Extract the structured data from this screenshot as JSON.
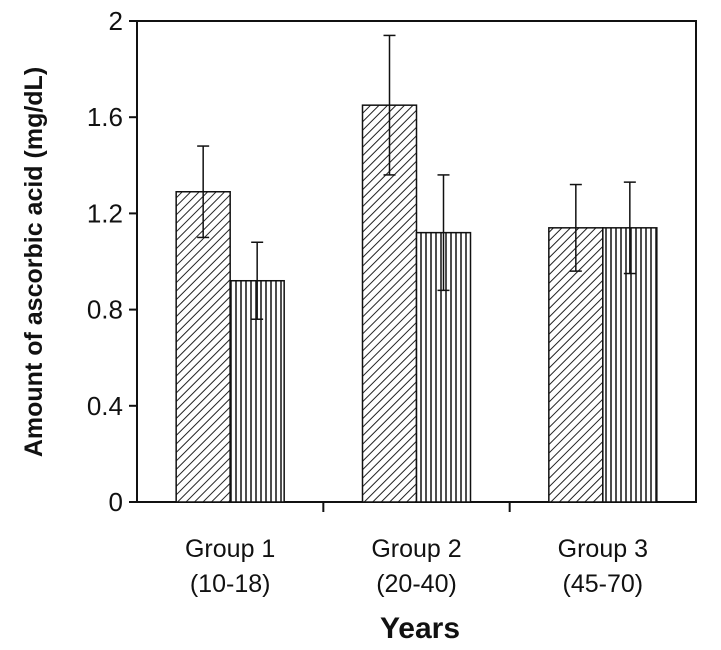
{
  "chart_data": {
    "type": "bar",
    "xlabel": "Years",
    "ylabel": "Amount of ascorbic acid (mg/dL)",
    "ylim": [
      0,
      2
    ],
    "yticks": [
      "0",
      "0.4",
      "0.8",
      "1.2",
      "1.6",
      "2"
    ],
    "categories": [
      {
        "line1": "Group 1",
        "line2": "(10-18)"
      },
      {
        "line1": "Group 2",
        "line2": "(20-40)"
      },
      {
        "line1": "Group 3",
        "line2": "(45-70)"
      }
    ],
    "series": [
      {
        "pattern": "diagonal-hatch",
        "values": [
          1.29,
          1.65,
          1.14
        ],
        "error": [
          0.19,
          0.29,
          0.18
        ]
      },
      {
        "pattern": "vertical-hatch",
        "values": [
          0.92,
          1.12,
          1.14
        ],
        "error": [
          0.16,
          0.24,
          0.19
        ]
      }
    ],
    "grid": false,
    "legend": "none"
  }
}
